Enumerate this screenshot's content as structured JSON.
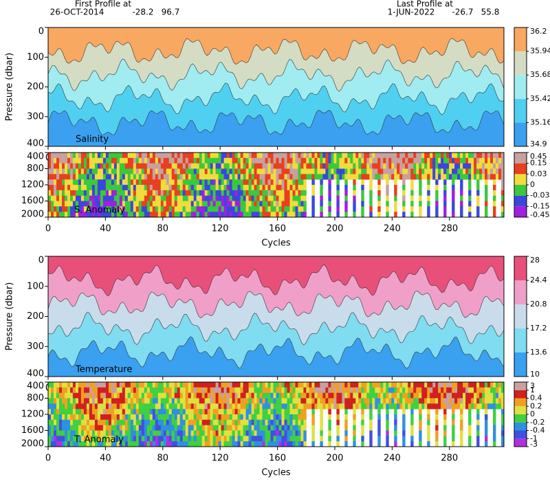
{
  "header": {
    "first_label": "First Profile at",
    "first_date": "26-OCT-2014",
    "first_lat": -28.2,
    "first_lon": 96.7,
    "last_label": "Last Profile at",
    "last_date": "1-JUN-2022",
    "last_lat": -26.7,
    "last_lon": 55.8
  },
  "chart_data": [
    {
      "type": "contour",
      "label": "Salinity",
      "ylabel": "Pressure (dbar)",
      "ylim": [
        0,
        400
      ],
      "yticks": [
        0,
        100,
        200,
        300,
        400
      ],
      "xlim": [
        0,
        318
      ],
      "xticks": [
        0,
        40,
        80,
        120,
        160,
        200,
        240,
        280
      ],
      "colorbar": {
        "ticks": [
          34.9,
          35.16,
          35.42,
          35.68,
          35.94,
          36.2
        ],
        "colors": [
          "#3ca0f0",
          "#50d0f0",
          "#a0ecf0",
          "#d4dcc4",
          "#f8a860"
        ]
      }
    },
    {
      "type": "anomaly",
      "label": "S. Anomaly",
      "xlabel": "Cycles",
      "ylim": [
        400,
        2000
      ],
      "yticks": [
        400,
        800,
        1200,
        1600,
        2000
      ],
      "xlim": [
        0,
        318
      ],
      "xticks": [
        0,
        40,
        80,
        120,
        160,
        200,
        240,
        280
      ],
      "colorbar": {
        "ticks": [
          -0.45,
          -0.15,
          -0.03,
          0,
          0.03,
          0.15,
          0.45
        ],
        "colors": [
          "#a020e0",
          "#3c46dc",
          "#3cc83c",
          "#f0dc3c",
          "#e8401e",
          "#c8a0a0"
        ]
      }
    },
    {
      "type": "contour",
      "label": "Temperature",
      "ylabel": "Pressure (dbar)",
      "ylim": [
        0,
        400
      ],
      "yticks": [
        0,
        100,
        200,
        300,
        400
      ],
      "xlim": [
        0,
        318
      ],
      "xticks": [
        0,
        40,
        80,
        120,
        160,
        200,
        240,
        280
      ],
      "colorbar": {
        "ticks": [
          10,
          13.6,
          17.2,
          20.8,
          24.4,
          28
        ],
        "colors": [
          "#3aa0f0",
          "#80dcf0",
          "#c8dcec",
          "#f0a0c8",
          "#e8507a"
        ]
      }
    },
    {
      "type": "anomaly",
      "label": "T. Anomaly",
      "xlabel": "Cycles",
      "ylim": [
        400,
        2000
      ],
      "yticks": [
        400,
        800,
        1200,
        1600,
        2000
      ],
      "xlim": [
        0,
        318
      ],
      "xticks": [
        0,
        40,
        80,
        120,
        160,
        200,
        240,
        280
      ],
      "colorbar": {
        "ticks": [
          -3,
          -1,
          -0.4,
          -0.2,
          0,
          0.2,
          0.4,
          1,
          3
        ],
        "colors": [
          "#b030e0",
          "#4050e0",
          "#3090e0",
          "#40d040",
          "#e0e040",
          "#f0a020",
          "#d02020",
          "#c8a0a0"
        ]
      }
    }
  ]
}
